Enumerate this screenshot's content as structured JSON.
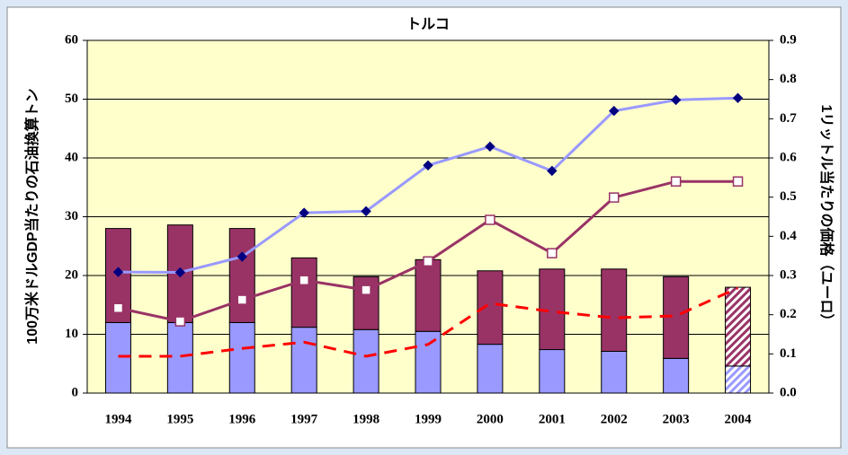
{
  "chart_data": {
    "type": "bar",
    "title": "トルコ",
    "y_label": "100万米ドルGDP当たりの石油換算トン",
    "y2_label": "1リットル当たりの価格（ユーロ）",
    "categories": [
      "1994",
      "1995",
      "1996",
      "1997",
      "1998",
      "1999",
      "2000",
      "2001",
      "2002",
      "2003",
      "2004"
    ],
    "stacked": true,
    "hatched": [
      false,
      false,
      false,
      false,
      false,
      false,
      false,
      false,
      false,
      false,
      true
    ],
    "series": [
      {
        "type": "bar",
        "color": "#9999ff",
        "values": [
          12,
          12,
          12,
          11.2,
          10.8,
          10.5,
          8.3,
          7.4,
          7.1,
          5.9,
          4.6
        ]
      },
      {
        "type": "bar",
        "color": "#993366",
        "values": [
          16,
          16.6,
          16,
          11.8,
          9,
          12.2,
          12.5,
          13.7,
          14,
          13.9,
          13.4
        ]
      },
      {
        "type": "line",
        "axis": "y2",
        "color": "#9999ff",
        "marker": "diamond",
        "marker_color": "#000080",
        "values": [
          0.309,
          0.308,
          0.348,
          0.46,
          0.464,
          0.581,
          0.629,
          0.567,
          0.72,
          0.748,
          0.753
        ]
      },
      {
        "type": "line",
        "axis": "y2",
        "color": "#993366",
        "marker": "square",
        "marker_color": "#ffffff",
        "values": [
          0.217,
          0.183,
          0.238,
          0.288,
          0.263,
          0.336,
          0.442,
          0.357,
          0.499,
          0.54,
          0.54
        ]
      },
      {
        "type": "line",
        "axis": "y2",
        "color": "#ff0000",
        "dashed": true,
        "values": [
          0.094,
          0.094,
          0.114,
          0.13,
          0.094,
          0.124,
          0.229,
          0.208,
          0.192,
          0.197,
          0.268
        ]
      }
    ],
    "ylim": [
      0,
      60
    ],
    "yticks": [
      0,
      10,
      20,
      30,
      40,
      50,
      60
    ],
    "y2lim": [
      0,
      0.9
    ],
    "y2ticks": [
      {
        "value": 0,
        "label": "0.0"
      },
      0.1,
      0.2,
      0.3,
      0.4,
      0.5,
      0.6,
      0.7,
      0.8,
      0.9
    ],
    "grid": true
  }
}
